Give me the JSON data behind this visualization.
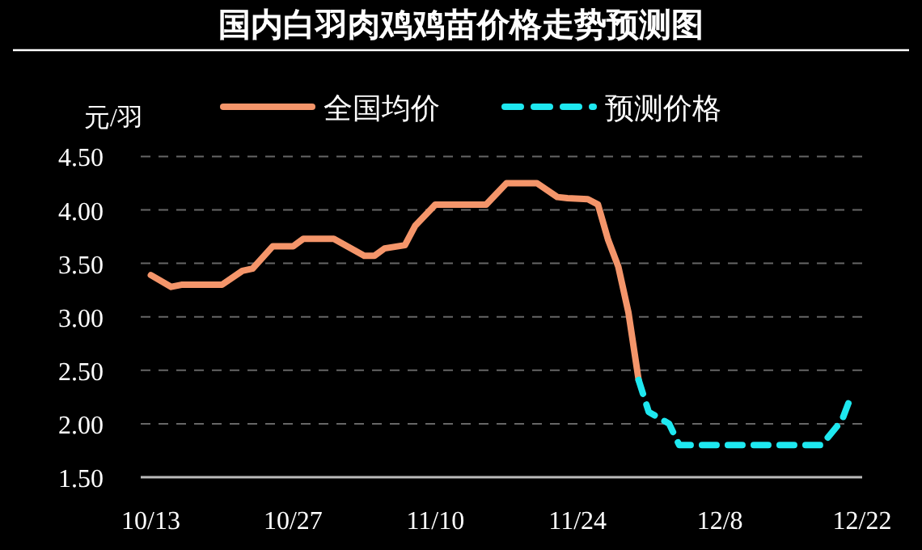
{
  "chart_data": {
    "type": "line",
    "title": "国内白羽肉鸡鸡苗价格走势预测图",
    "ylabel": "元/羽",
    "xlim": [
      "--10-12",
      "--12-22"
    ],
    "xticks": [
      {
        "value": "--10-13",
        "label": "10/13"
      },
      {
        "value": "--10-27",
        "label": "10/27"
      },
      {
        "value": "--11-10",
        "label": "11/10"
      },
      {
        "value": "--11-24",
        "label": "11/24"
      },
      {
        "value": "--12-08",
        "label": "12/8"
      },
      {
        "value": "--12-22",
        "label": "12/22"
      }
    ],
    "ylim": [
      1.5,
      4.5
    ],
    "yticks": [
      {
        "value": 1.5,
        "label": "1.50"
      },
      {
        "value": 2,
        "label": "2.00"
      },
      {
        "value": 2.5,
        "label": "2.50"
      },
      {
        "value": 3,
        "label": "3.00"
      },
      {
        "value": 3.5,
        "label": "3.50"
      },
      {
        "value": 4,
        "label": "4.00"
      },
      {
        "value": 4.5,
        "label": "4.50"
      }
    ],
    "grid": "y",
    "legend": "top",
    "series": [
      {
        "name": "全国均价",
        "color": "#f4956a",
        "line_style": "solid",
        "x": [
          "--10-13",
          "--10-15",
          "--10-16",
          "--10-20",
          "--10-22",
          "--10-23",
          "--10-25",
          "--10-27",
          "--10-28",
          "--10-31",
          "--11-03",
          "--11-04",
          "--11-05",
          "--11-07",
          "--11-08",
          "--11-10",
          "--11-15",
          "--11-17",
          "--11-20",
          "--11-22",
          "--11-23",
          "--11-25",
          "--11-26",
          "--11-27",
          "--11-28",
          "--11-29",
          "--11-30"
        ],
        "values": [
          3.39,
          3.28,
          3.3,
          3.3,
          3.43,
          3.45,
          3.66,
          3.66,
          3.73,
          3.73,
          3.57,
          3.57,
          3.64,
          3.67,
          3.85,
          4.05,
          4.05,
          4.25,
          4.25,
          4.12,
          4.11,
          4.1,
          4.05,
          3.72,
          3.47,
          3.04,
          2.41
        ]
      },
      {
        "name": "预测价格",
        "color": "#1ee8f0",
        "line_style": "dashed",
        "x": [
          "--11-30",
          "--12-01",
          "--12-03",
          "--12-04",
          "--12-18",
          "--12-20",
          "--12-21"
        ],
        "values": [
          2.41,
          2.11,
          2.0,
          1.8,
          1.8,
          2.03,
          2.28
        ]
      }
    ]
  }
}
